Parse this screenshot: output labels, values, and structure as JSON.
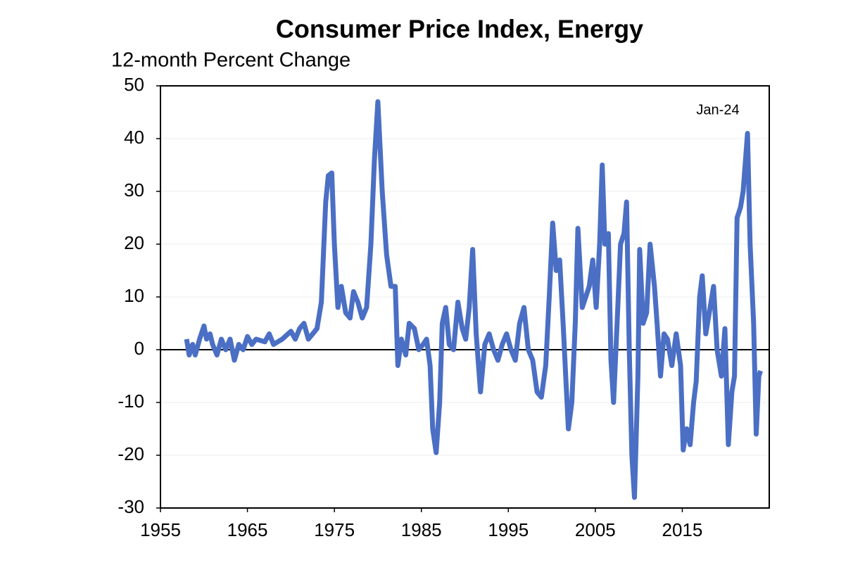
{
  "chart_data": {
    "type": "line",
    "title": "Consumer Price Index, Energy",
    "y_label": "12-month Percent Change",
    "annotation": "Jan-24",
    "color": "#4a6fc4",
    "grid": true,
    "zero_line": true,
    "xlim": [
      1955,
      2025
    ],
    "xticks": [
      1955,
      1965,
      1975,
      1985,
      1995,
      2005,
      2015
    ],
    "ylim": [
      -30,
      50
    ],
    "yticks": [
      -30,
      -20,
      -10,
      0,
      10,
      20,
      30,
      40,
      50
    ],
    "x": [
      1958.0,
      1958.3,
      1958.7,
      1959.0,
      1959.5,
      1960.0,
      1960.3,
      1960.7,
      1961.0,
      1961.5,
      1962.0,
      1962.5,
      1963.0,
      1963.5,
      1964.0,
      1964.5,
      1965.0,
      1965.5,
      1966.0,
      1967.0,
      1967.5,
      1968.0,
      1969.0,
      1970.0,
      1970.5,
      1971.0,
      1971.5,
      1972.0,
      1972.5,
      1973.0,
      1973.5,
      1974.0,
      1974.3,
      1974.7,
      1975.0,
      1975.4,
      1975.8,
      1976.3,
      1976.8,
      1977.2,
      1977.7,
      1978.2,
      1978.7,
      1979.2,
      1979.6,
      1980.0,
      1980.5,
      1981.0,
      1981.5,
      1982.0,
      1982.3,
      1982.7,
      1983.2,
      1983.6,
      1984.2,
      1984.7,
      1985.2,
      1985.6,
      1986.0,
      1986.3,
      1986.7,
      1987.1,
      1987.4,
      1987.8,
      1988.2,
      1988.7,
      1989.2,
      1989.7,
      1990.1,
      1990.5,
      1990.9,
      1991.3,
      1991.8,
      1992.3,
      1992.8,
      1993.3,
      1993.8,
      1994.3,
      1994.8,
      1995.3,
      1995.8,
      1996.3,
      1996.8,
      1997.3,
      1997.8,
      1998.3,
      1998.8,
      1999.3,
      1999.7,
      2000.1,
      2000.5,
      2000.9,
      2001.3,
      2001.6,
      2001.9,
      2002.3,
      2002.7,
      2003.0,
      2003.5,
      2003.9,
      2004.3,
      2004.7,
      2005.1,
      2005.5,
      2005.8,
      2006.1,
      2006.5,
      2006.8,
      2007.1,
      2007.5,
      2007.9,
      2008.3,
      2008.6,
      2008.9,
      2009.2,
      2009.5,
      2009.9,
      2010.1,
      2010.5,
      2010.9,
      2011.3,
      2011.8,
      2012.1,
      2012.5,
      2012.9,
      2013.3,
      2013.8,
      2014.3,
      2014.8,
      2015.1,
      2015.5,
      2015.9,
      2016.3,
      2016.6,
      2017.0,
      2017.3,
      2017.7,
      2018.2,
      2018.6,
      2019.0,
      2019.5,
      2019.9,
      2020.3,
      2020.7,
      2021.0,
      2021.3,
      2021.7,
      2022.0,
      2022.5,
      2022.8,
      2023.2,
      2023.5,
      2023.8,
      2024.0
    ],
    "values": [
      2,
      -1,
      1,
      -1,
      2,
      4.5,
      2,
      3,
      1,
      -1,
      2,
      0,
      2,
      -2,
      1,
      0,
      2.5,
      1,
      2,
      1.5,
      3,
      1,
      2,
      3.5,
      2,
      4,
      5,
      2,
      3,
      4,
      9,
      28,
      33,
      33.5,
      20,
      8,
      12,
      7,
      6,
      11,
      9,
      6,
      8,
      20,
      36,
      47,
      30,
      18,
      12,
      12,
      -3,
      2,
      -1,
      5,
      4,
      0,
      1,
      2,
      -3,
      -15,
      -19.5,
      -10,
      5,
      8,
      1,
      0,
      9,
      4,
      2,
      8,
      19,
      3,
      -8,
      1,
      3,
      0,
      -2,
      1,
      3,
      0,
      -2,
      5,
      8,
      0,
      -2,
      -8,
      -9,
      -3,
      10,
      24,
      15,
      17,
      5,
      -5,
      -15,
      -10,
      5,
      23,
      8,
      10,
      12,
      17,
      8,
      20,
      35,
      20,
      22,
      -2,
      -10,
      5,
      20,
      22,
      28,
      0,
      -20,
      -28,
      -5,
      19,
      5,
      7,
      20,
      12,
      5,
      -5,
      3,
      2,
      -3,
      3,
      -3,
      -19,
      -15,
      -18,
      -10,
      -6,
      10,
      14,
      3,
      8,
      12,
      0,
      -5,
      4,
      -18,
      -8,
      -5,
      25,
      27,
      30,
      41,
      20,
      5,
      -16,
      -5,
      -4
    ]
  }
}
